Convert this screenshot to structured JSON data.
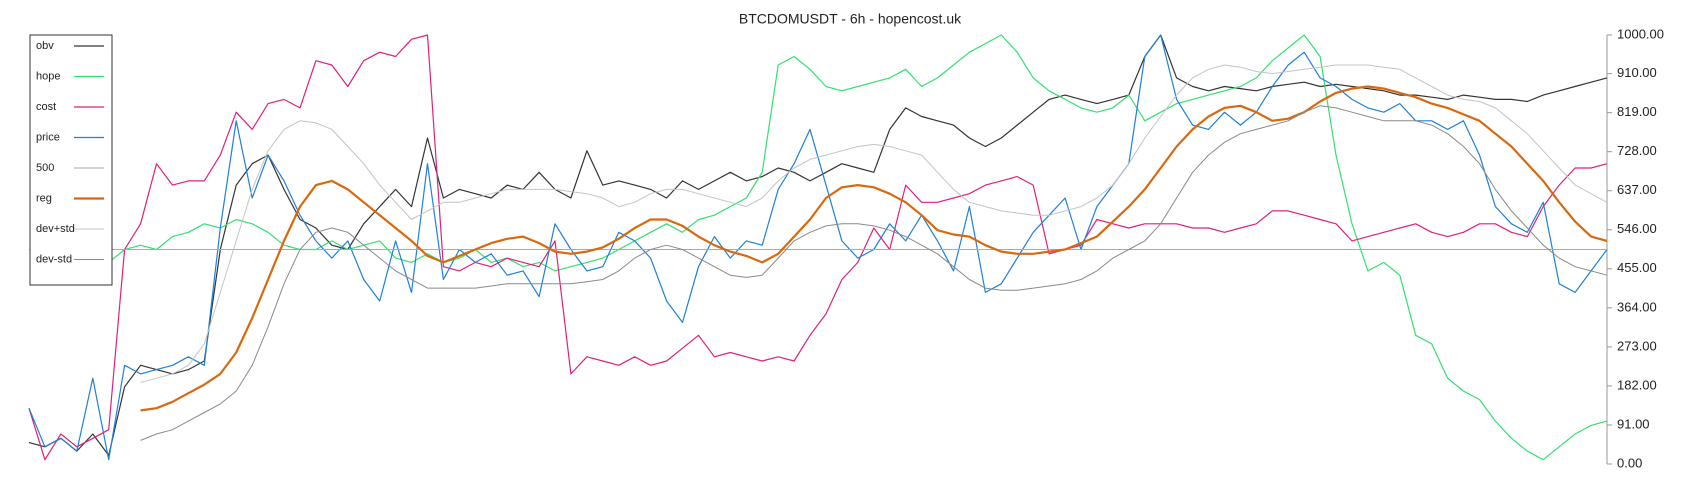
{
  "chart_data": {
    "type": "line",
    "title": "BTCDOMUSDT - 6h - hopencost.uk",
    "ylim": [
      0,
      1000
    ],
    "yticks": [
      {
        "value": 0,
        "label": "0.00"
      },
      {
        "value": 91,
        "label": "91.00"
      },
      {
        "value": 182,
        "label": "182.00"
      },
      {
        "value": 273,
        "label": "273.00"
      },
      {
        "value": 364,
        "label": "364.00"
      },
      {
        "value": 455,
        "label": "455.00"
      },
      {
        "value": 546,
        "label": "546.00"
      },
      {
        "value": 637,
        "label": "637.00"
      },
      {
        "value": 728,
        "label": "728.00"
      },
      {
        "value": 819,
        "label": "819.00"
      },
      {
        "value": 910,
        "label": "910.00"
      },
      {
        "value": 1000,
        "label": "1000.00"
      }
    ],
    "legend": "top-left",
    "series": [
      {
        "name": "obv",
        "color": "#333333",
        "width": 1.2,
        "values": [
          50,
          40,
          60,
          30,
          70,
          20,
          180,
          230,
          220,
          210,
          220,
          240,
          500,
          650,
          700,
          720,
          640,
          570,
          550,
          510,
          500,
          560,
          600,
          640,
          600,
          760,
          620,
          640,
          630,
          620,
          650,
          640,
          680,
          640,
          620,
          730,
          650,
          660,
          650,
          640,
          620,
          660,
          640,
          660,
          680,
          660,
          670,
          690,
          680,
          660,
          680,
          700,
          690,
          680,
          780,
          830,
          810,
          800,
          790,
          760,
          740,
          760,
          790,
          820,
          850,
          860,
          850,
          840,
          850,
          860,
          950,
          1000,
          900,
          880,
          870,
          880,
          875,
          870,
          880,
          885,
          890,
          880,
          885,
          880,
          875,
          870,
          860,
          860,
          855,
          850,
          860,
          855,
          850,
          850,
          845,
          860,
          870,
          880,
          890,
          900
        ]
      },
      {
        "name": "hope",
        "color": "#33e070",
        "width": 1.2,
        "values": [
          null,
          null,
          null,
          null,
          null,
          470,
          500,
          510,
          500,
          530,
          540,
          560,
          550,
          570,
          560,
          540,
          510,
          500,
          500,
          520,
          500,
          510,
          520,
          480,
          470,
          490,
          470,
          480,
          500,
          470,
          480,
          460,
          470,
          450,
          460,
          470,
          480,
          500,
          520,
          540,
          560,
          540,
          570,
          580,
          600,
          620,
          680,
          930,
          950,
          920,
          880,
          870,
          880,
          890,
          900,
          920,
          880,
          900,
          930,
          960,
          980,
          1000,
          960,
          900,
          870,
          850,
          830,
          820,
          830,
          860,
          800,
          820,
          840,
          850,
          860,
          870,
          880,
          900,
          940,
          970,
          1000,
          950,
          720,
          560,
          450,
          470,
          440,
          300,
          280,
          200,
          170,
          150,
          100,
          60,
          30,
          10,
          40,
          70,
          90,
          100
        ]
      },
      {
        "name": "cost",
        "color": "#e0207a",
        "width": 1.2,
        "values": [
          130,
          10,
          70,
          40,
          60,
          80,
          500,
          560,
          700,
          650,
          660,
          660,
          720,
          820,
          780,
          840,
          850,
          830,
          940,
          930,
          880,
          940,
          960,
          950,
          990,
          1000,
          460,
          450,
          470,
          460,
          480,
          470,
          460,
          520,
          210,
          250,
          240,
          230,
          250,
          230,
          240,
          270,
          300,
          250,
          260,
          250,
          240,
          250,
          240,
          300,
          350,
          430,
          470,
          550,
          500,
          650,
          610,
          610,
          620,
          630,
          650,
          660,
          670,
          650,
          490,
          500,
          510,
          570,
          560,
          550,
          560,
          560,
          560,
          550,
          550,
          540,
          550,
          560,
          590,
          590,
          580,
          570,
          560,
          520,
          530,
          540,
          550,
          560,
          540,
          530,
          540,
          560,
          560,
          540,
          530,
          600,
          650,
          690,
          690,
          700
        ]
      },
      {
        "name": "price",
        "color": "#1e80d8",
        "width": 1.2,
        "values": [
          130,
          40,
          60,
          30,
          200,
          10,
          230,
          210,
          220,
          230,
          250,
          230,
          550,
          800,
          620,
          720,
          660,
          580,
          520,
          480,
          520,
          430,
          380,
          520,
          400,
          700,
          430,
          500,
          470,
          490,
          440,
          450,
          390,
          560,
          500,
          450,
          460,
          540,
          520,
          480,
          380,
          330,
          460,
          530,
          480,
          520,
          510,
          640,
          700,
          780,
          650,
          520,
          480,
          500,
          560,
          520,
          580,
          520,
          450,
          600,
          400,
          420,
          480,
          540,
          580,
          620,
          500,
          600,
          650,
          700,
          950,
          1000,
          850,
          790,
          780,
          820,
          790,
          820,
          880,
          930,
          960,
          900,
          880,
          850,
          830,
          820,
          840,
          800,
          800,
          780,
          800,
          720,
          600,
          560,
          540,
          610,
          420,
          400,
          450,
          500
        ]
      },
      {
        "name": "500",
        "color": "#aaaaaa",
        "width": 1,
        "values": [
          500,
          500,
          500,
          500,
          500,
          500,
          500,
          500,
          500,
          500,
          500,
          500,
          500,
          500,
          500,
          500,
          500,
          500,
          500,
          500,
          500,
          500,
          500,
          500,
          500,
          500,
          500,
          500,
          500,
          500,
          500,
          500,
          500,
          500,
          500,
          500,
          500,
          500,
          500,
          500,
          500,
          500,
          500,
          500,
          500,
          500,
          500,
          500,
          500,
          500,
          500,
          500,
          500,
          500,
          500,
          500,
          500,
          500,
          500,
          500,
          500,
          500,
          500,
          500,
          500,
          500,
          500,
          500,
          500,
          500,
          500,
          500,
          500,
          500,
          500,
          500,
          500,
          500,
          500,
          500,
          500,
          500,
          500,
          500,
          500,
          500,
          500,
          500,
          500,
          500,
          500,
          500,
          500,
          500,
          500,
          500,
          500,
          500,
          500,
          500
        ]
      },
      {
        "name": "reg",
        "color": "#d9680f",
        "width": 2.2,
        "values": [
          null,
          null,
          null,
          null,
          null,
          null,
          null,
          125,
          130,
          145,
          165,
          185,
          210,
          260,
          340,
          430,
          520,
          600,
          650,
          660,
          640,
          610,
          580,
          550,
          520,
          485,
          470,
          485,
          500,
          515,
          525,
          530,
          515,
          495,
          490,
          495,
          505,
          525,
          550,
          570,
          570,
          555,
          530,
          510,
          495,
          485,
          470,
          490,
          530,
          570,
          620,
          645,
          650,
          645,
          630,
          610,
          580,
          545,
          535,
          530,
          510,
          495,
          490,
          490,
          495,
          500,
          515,
          530,
          565,
          600,
          640,
          690,
          740,
          780,
          810,
          830,
          835,
          820,
          800,
          805,
          820,
          845,
          865,
          875,
          880,
          875,
          865,
          855,
          840,
          830,
          815,
          800,
          770,
          740,
          700,
          660,
          610,
          565,
          530,
          520
        ]
      },
      {
        "name": "dev+std",
        "color": "#c4c4c4",
        "width": 1,
        "values": [
          null,
          null,
          null,
          null,
          null,
          null,
          null,
          190,
          200,
          210,
          230,
          280,
          400,
          520,
          640,
          730,
          780,
          800,
          795,
          780,
          740,
          700,
          650,
          610,
          570,
          590,
          610,
          610,
          620,
          630,
          640,
          640,
          640,
          640,
          635,
          630,
          620,
          600,
          610,
          630,
          640,
          640,
          630,
          620,
          610,
          600,
          620,
          660,
          690,
          710,
          720,
          730,
          740,
          745,
          740,
          730,
          720,
          680,
          640,
          610,
          600,
          590,
          585,
          580,
          580,
          590,
          600,
          620,
          650,
          700,
          760,
          810,
          860,
          900,
          920,
          930,
          925,
          915,
          910,
          915,
          920,
          925,
          930,
          930,
          930,
          925,
          920,
          900,
          880,
          860,
          850,
          845,
          830,
          800,
          770,
          730,
          690,
          650,
          630,
          610
        ]
      },
      {
        "name": "dev-std",
        "color": "#8a8a8a",
        "width": 1,
        "values": [
          null,
          null,
          null,
          null,
          null,
          null,
          null,
          55,
          70,
          80,
          100,
          120,
          140,
          170,
          230,
          320,
          420,
          500,
          540,
          550,
          540,
          510,
          480,
          450,
          430,
          410,
          410,
          410,
          410,
          415,
          420,
          420,
          420,
          420,
          420,
          425,
          430,
          450,
          480,
          500,
          510,
          500,
          480,
          460,
          440,
          435,
          440,
          480,
          520,
          540,
          555,
          560,
          560,
          555,
          545,
          530,
          510,
          490,
          460,
          430,
          410,
          405,
          405,
          410,
          415,
          420,
          430,
          450,
          480,
          500,
          520,
          560,
          620,
          680,
          720,
          750,
          770,
          780,
          790,
          800,
          820,
          835,
          830,
          820,
          810,
          800,
          800,
          800,
          790,
          770,
          740,
          700,
          640,
          590,
          550,
          510,
          480,
          460,
          450,
          440
        ]
      }
    ]
  }
}
